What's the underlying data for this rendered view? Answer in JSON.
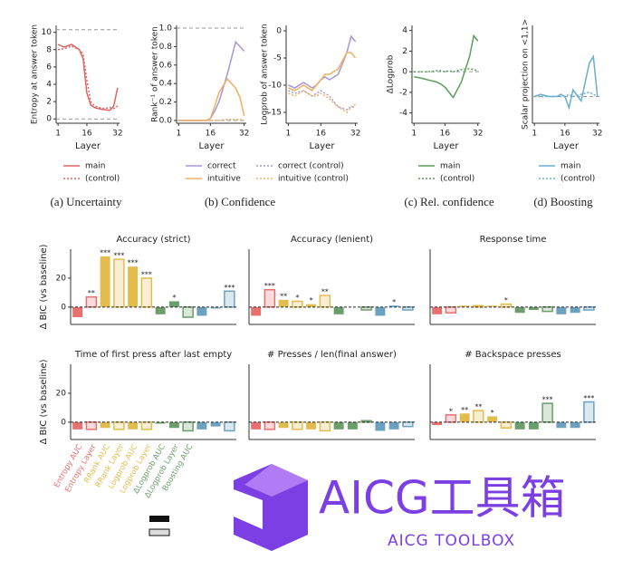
{
  "chart_data": [
    {
      "type": "line",
      "caption": "(a) Uncertainty",
      "ylabel": "Entropy at answer token",
      "xlabel": "Layer",
      "x": [
        1,
        4,
        8,
        12,
        14,
        16,
        18,
        20,
        24,
        28,
        30,
        32
      ],
      "xlim": [
        0,
        33
      ],
      "xticks": [
        1,
        16,
        32
      ],
      "ylim": [
        -0.5,
        10.8
      ],
      "yticks": [
        0,
        2,
        4,
        6,
        8,
        10
      ],
      "hlines": [
        0,
        10.3
      ],
      "series": [
        {
          "name": "main",
          "color": "#e06666",
          "dashed": false,
          "values": [
            8.6,
            8.3,
            8.6,
            8.0,
            7.0,
            3.0,
            1.6,
            1.3,
            1.1,
            1.0,
            1.5,
            3.6
          ]
        },
        {
          "name": "(control)",
          "color": "#e06666",
          "dashed": true,
          "values": [
            8.0,
            8.1,
            8.4,
            8.0,
            7.5,
            4.5,
            2.0,
            1.5,
            1.2,
            1.3,
            1.2,
            1.5
          ]
        }
      ]
    },
    {
      "type": "line",
      "caption": "(b) Confidence",
      "ylabel": "Rank⁻¹ of answer token",
      "xlabel": "Layer",
      "x": [
        1,
        4,
        8,
        12,
        14,
        16,
        18,
        20,
        24,
        28,
        30,
        32
      ],
      "xlim": [
        0,
        33
      ],
      "xticks": [
        1,
        16,
        32
      ],
      "ylim": [
        -0.03,
        1.03
      ],
      "yticks": [
        {
          "value": 0,
          "label": "0.0"
        },
        0.2,
        0.4,
        0.6,
        0.8,
        {
          "value": 1,
          "label": "1.0"
        }
      ],
      "hlines": [
        0,
        1
      ],
      "series": [
        {
          "name": "correct",
          "color": "#a896d6",
          "dashed": false,
          "values": [
            0,
            0,
            0,
            0,
            0,
            0.02,
            0.1,
            0.2,
            0.5,
            0.85,
            0.8,
            0.75
          ]
        },
        {
          "name": "intuitive",
          "color": "#f0b060",
          "dashed": false,
          "values": [
            0,
            0,
            0,
            0,
            0,
            0.02,
            0.15,
            0.3,
            0.45,
            0.35,
            0.25,
            0.05
          ]
        },
        {
          "name": "correct (control)",
          "color": "#a896d6",
          "dashed": true,
          "values": [
            0,
            0,
            0,
            0,
            0,
            0,
            0,
            0,
            0.01,
            0.01,
            0.01,
            0
          ]
        },
        {
          "name": "intuitive (control)",
          "color": "#f0b060",
          "dashed": true,
          "values": [
            0,
            0,
            0,
            0,
            0,
            0,
            0,
            0,
            0.01,
            0.01,
            0.01,
            0
          ]
        }
      ]
    },
    {
      "type": "line",
      "ylabel": "Logprob of answer token",
      "xlabel": "Layer",
      "x": [
        1,
        4,
        8,
        12,
        14,
        16,
        18,
        20,
        24,
        28,
        30,
        32
      ],
      "xlim": [
        0,
        33
      ],
      "xticks": [
        1,
        16,
        32
      ],
      "ylim": [
        -17,
        1
      ],
      "yticks": [
        -15,
        -10,
        -5,
        0
      ],
      "hlines": [],
      "series": [
        {
          "color": "#a896d6",
          "dashed": false,
          "values": [
            -10,
            -10.5,
            -9.5,
            -10.5,
            -10,
            -9,
            -8.5,
            -9,
            -8,
            -4,
            -1,
            -2
          ]
        },
        {
          "color": "#f0b060",
          "dashed": false,
          "values": [
            -10.5,
            -11,
            -10,
            -11,
            -10,
            -9,
            -8,
            -8,
            -7,
            -4,
            -4,
            -5
          ]
        },
        {
          "color": "#a896d6",
          "dashed": true,
          "values": [
            -11,
            -11.5,
            -11,
            -12,
            -11.5,
            -11,
            -11.5,
            -12,
            -14,
            -14.5,
            -14,
            -14
          ]
        },
        {
          "color": "#f0b060",
          "dashed": true,
          "values": [
            -11.5,
            -12,
            -11,
            -12,
            -12,
            -11.5,
            -12,
            -12.5,
            -14,
            -15,
            -14,
            -13.5
          ]
        }
      ]
    },
    {
      "type": "line",
      "caption": "(c) Rel. confidence",
      "ylabel": "ΔLogprob",
      "xlabel": "Layer",
      "x": [
        1,
        4,
        8,
        12,
        14,
        16,
        18,
        20,
        24,
        28,
        30,
        32
      ],
      "xlim": [
        0,
        33
      ],
      "xticks": [
        1,
        16,
        32
      ],
      "ylim": [
        -5,
        4.5
      ],
      "yticks": [
        -4,
        -2,
        0,
        2,
        4
      ],
      "hlines": [
        0
      ],
      "series": [
        {
          "name": "main",
          "color": "#5a9e5a",
          "dashed": false,
          "values": [
            -0.5,
            -0.6,
            -0.8,
            -1,
            -1.2,
            -1.5,
            -2,
            -2.5,
            -1,
            1.5,
            3.5,
            3
          ]
        },
        {
          "name": "(control)",
          "color": "#5a9e5a",
          "dashed": true,
          "values": [
            0,
            0,
            0,
            0.1,
            0.1,
            0,
            0.1,
            0,
            0.2,
            0.3,
            0.2,
            0.1
          ]
        }
      ]
    },
    {
      "type": "line",
      "caption": "(d) Boosting",
      "ylabel": "Scalar projection on <1,1>",
      "xlabel": "Layer",
      "x": [
        1,
        4,
        8,
        12,
        14,
        16,
        18,
        20,
        24,
        28,
        30,
        32
      ],
      "xlim": [
        0,
        33
      ],
      "xticks": [
        1,
        16,
        32
      ],
      "ylim": [
        -1.2,
        3.2
      ],
      "yticks": [],
      "hlines": [
        0
      ],
      "series": [
        {
          "name": "main",
          "color": "#6aaed0",
          "dashed": false,
          "values": [
            0,
            0.1,
            0,
            0,
            0.1,
            0,
            -0.5,
            0.3,
            -0.2,
            1.5,
            1.8,
            0
          ]
        },
        {
          "name": "(control)",
          "color": "#6aaed0",
          "dashed": true,
          "values": [
            0,
            0,
            0,
            0,
            0,
            0,
            0.1,
            0,
            0.1,
            0.2,
            0.1,
            0
          ]
        }
      ]
    },
    {
      "type": "bar",
      "title": "Accuracy (strict)",
      "ylabel": "Δ BIC (vs baseline)",
      "ylim": [
        -12,
        40
      ],
      "yticks": [
        0,
        20
      ],
      "values": [
        -7,
        7,
        35,
        33,
        28,
        20,
        -5,
        4,
        -7,
        -6,
        -1,
        11
      ],
      "significance": [
        null,
        "**",
        "***",
        "***",
        "***",
        "***",
        null,
        "*",
        null,
        null,
        null,
        "***"
      ]
    },
    {
      "type": "bar",
      "title": "Accuracy (lenient)",
      "ylim": [
        -12,
        40
      ],
      "values": [
        -6,
        12,
        5,
        4,
        2,
        8,
        -5,
        0,
        -2,
        -6,
        1,
        -2
      ],
      "significance": [
        null,
        "***",
        "**",
        "*",
        "*",
        "**",
        null,
        null,
        null,
        null,
        "*",
        null
      ]
    },
    {
      "type": "bar",
      "title": "Response time",
      "ylim": [
        -12,
        40
      ],
      "values": [
        -5,
        -4,
        1,
        1,
        1,
        2,
        -4,
        -2,
        -3,
        -5,
        -4,
        -2
      ],
      "significance": [
        null,
        null,
        null,
        null,
        null,
        "*",
        null,
        null,
        null,
        null,
        null,
        null
      ]
    },
    {
      "type": "bar",
      "title": "Time of first press after last empty",
      "ylabel": "Δ BIC (vs baseline)",
      "ylim": [
        -12,
        40
      ],
      "yticks": [
        0,
        20
      ],
      "values": [
        -5,
        -5,
        -4,
        -5,
        -5,
        -5,
        -1,
        -4,
        -6,
        -5,
        -3,
        -6
      ],
      "categories": [
        "Entropy AUC",
        "Entropy Layer",
        "RRank AUC",
        "RRank Layer",
        "Logprob AUC",
        "Logprob Layer",
        "ΔLogprob AUC",
        "ΔLogprob Layer",
        "Boosting AUC",
        null,
        null,
        null
      ],
      "colors": [
        "#e8706f",
        "#e8706f",
        "#e2bd4e",
        "#e2bd4e",
        "#e2bd4e",
        "#e2bd4e",
        "#6a9e6a",
        "#6a9e6a",
        "#6a9e6a",
        "#6ca2c0",
        "#6ca2c0",
        "#6ca2c0"
      ],
      "outlined": [
        false,
        true,
        false,
        true,
        false,
        true,
        false,
        false,
        true,
        false,
        false,
        true
      ]
    },
    {
      "type": "bar",
      "title": "# Presses / len(final answer)",
      "ylim": [
        -12,
        40
      ],
      "values": [
        -5,
        -5,
        -4,
        -5,
        -5,
        -6,
        -5,
        -5,
        1,
        -6,
        -5,
        -3
      ]
    },
    {
      "type": "bar",
      "title": "# Backspace presses",
      "ylim": [
        -12,
        40
      ],
      "values": [
        -2,
        5,
        6,
        8,
        4,
        -4,
        -5,
        -5,
        13,
        -4,
        -4,
        14
      ],
      "significance": [
        null,
        "*",
        "**",
        "**",
        "*",
        null,
        null,
        null,
        "***",
        null,
        null,
        "***"
      ]
    }
  ],
  "watermark": {
    "title": "AICG工具箱",
    "subtitle": "AICG TOOLBOX"
  }
}
